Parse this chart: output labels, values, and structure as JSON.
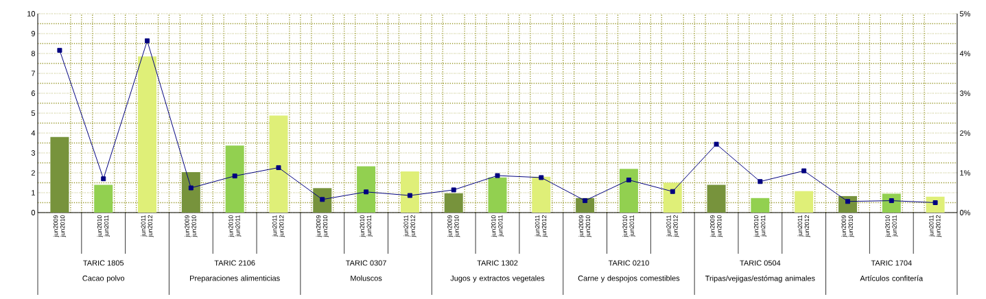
{
  "chart_data": {
    "type": "bar",
    "categories": [
      "jun2009 jun2010",
      "jun2010 jun2011",
      "jun2011 jun2012",
      "jun2009 jun2010",
      "jun2010 jun2011",
      "jun2011 jun2012",
      "jun2009 jun2010",
      "jun2010 jun2011",
      "jun2011 jun2012",
      "jun2009 jun2010",
      "jun2010 jun2011",
      "jun2011 jun2012",
      "jun2009 jun2010",
      "jun2010 jun2011",
      "jun2011 jun2012",
      "jun2009 jun2010",
      "jun2010 jun2011",
      "jun2011 jun2012",
      "jun2009 jun2010",
      "jun2010 jun2011",
      "jun2011 jun2012"
    ],
    "series": [
      {
        "values": [
          3.8,
          1.4,
          7.85,
          2.03,
          3.37,
          4.88,
          1.23,
          2.33,
          2.07,
          0.97,
          1.77,
          1.8,
          0.73,
          2.2,
          1.5,
          1.4,
          0.73,
          1.08,
          0.83,
          0.95,
          0.8
        ],
        "colors": [
          "#77933c",
          "#92d050",
          "#dfef78",
          "#77933c",
          "#92d050",
          "#dfef78",
          "#77933c",
          "#92d050",
          "#dfef78",
          "#77933c",
          "#92d050",
          "#dfef78",
          "#77933c",
          "#92d050",
          "#dfef78",
          "#77933c",
          "#92d050",
          "#dfef78",
          "#77933c",
          "#92d050",
          "#dfef78"
        ]
      },
      {
        "type": "line",
        "axis": "y2",
        "color": "#000080",
        "values": [
          4.08,
          0.85,
          4.32,
          0.62,
          0.92,
          1.13,
          0.33,
          0.52,
          0.43,
          0.57,
          0.93,
          0.88,
          0.3,
          0.82,
          0.53,
          1.72,
          0.78,
          1.05,
          0.28,
          0.3,
          0.25
        ]
      }
    ],
    "ylim": [
      0,
      10
    ],
    "yticks": [
      0,
      1,
      2,
      3,
      4,
      5,
      6,
      7,
      8,
      9,
      10
    ],
    "y2lim": [
      0,
      5
    ],
    "y2ticks": [
      {
        "value": 0,
        "label": "0%"
      },
      {
        "value": 1,
        "label": "1%"
      },
      {
        "value": 2,
        "label": "2%"
      },
      {
        "value": 3,
        "label": "3%"
      },
      {
        "value": 4,
        "label": "4%"
      },
      {
        "value": 5,
        "label": "5%"
      }
    ],
    "grid": true,
    "marker": "square",
    "annotations": [
      "TARIC 1805",
      "Cacao polvo",
      "TARIC 2106",
      "Preparaciones alimenticias",
      "TARIC 0307",
      "Moluscos",
      "TARIC 1302",
      "Jugos y extractos vegetales",
      "TARIC 0210",
      "Carne y despojos comestibles",
      "TARIC 0504",
      "Tripas/vejigas/estómag animales",
      "TARIC 1704",
      "Artículos confitería"
    ]
  }
}
